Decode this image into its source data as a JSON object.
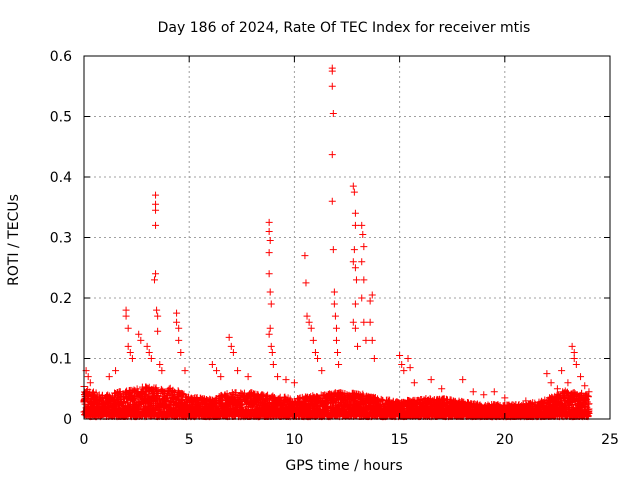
{
  "chart_data": {
    "type": "scatter",
    "title": "Day 186 of 2024, Rate Of TEC Index for receiver mtis",
    "xlabel": "GPS time / hours",
    "ylabel": "ROTI / TECUs",
    "xlim": [
      0,
      25
    ],
    "ylim": [
      0,
      0.6
    ],
    "x_ticks": [
      0,
      5,
      10,
      15,
      20,
      25
    ],
    "y_ticks": [
      0,
      0.1,
      0.2,
      0.3,
      0.4,
      0.5,
      0.6
    ],
    "x_tick_labels": [
      "0",
      "5",
      "10",
      "15",
      "20",
      "25"
    ],
    "y_tick_labels": [
      "0",
      "0.1",
      "0.2",
      "0.3",
      "0.4",
      "0.5",
      "0.6"
    ],
    "grid": true,
    "marker": "+",
    "series_color": "#ff0000",
    "baseline_profile": [
      [
        0.0,
        0.05
      ],
      [
        0.5,
        0.04
      ],
      [
        1.0,
        0.035
      ],
      [
        2.0,
        0.045
      ],
      [
        3.0,
        0.05
      ],
      [
        4.0,
        0.05
      ],
      [
        5.0,
        0.035
      ],
      [
        6.0,
        0.03
      ],
      [
        7.0,
        0.04
      ],
      [
        8.0,
        0.04
      ],
      [
        9.0,
        0.035
      ],
      [
        10.0,
        0.03
      ],
      [
        11.0,
        0.035
      ],
      [
        12.0,
        0.04
      ],
      [
        13.0,
        0.04
      ],
      [
        14.0,
        0.03
      ],
      [
        15.0,
        0.025
      ],
      [
        16.0,
        0.03
      ],
      [
        17.0,
        0.03
      ],
      [
        18.0,
        0.025
      ],
      [
        19.0,
        0.02
      ],
      [
        20.0,
        0.02
      ],
      [
        21.0,
        0.02
      ],
      [
        22.0,
        0.03
      ],
      [
        23.0,
        0.045
      ],
      [
        24.0,
        0.035
      ]
    ],
    "points": [
      [
        0.1,
        0.08
      ],
      [
        0.2,
        0.07
      ],
      [
        0.3,
        0.06
      ],
      [
        1.2,
        0.07
      ],
      [
        1.5,
        0.08
      ],
      [
        2.0,
        0.18
      ],
      [
        2.0,
        0.17
      ],
      [
        2.1,
        0.15
      ],
      [
        2.1,
        0.12
      ],
      [
        2.2,
        0.11
      ],
      [
        2.3,
        0.1
      ],
      [
        2.6,
        0.14
      ],
      [
        2.7,
        0.13
      ],
      [
        3.0,
        0.12
      ],
      [
        3.1,
        0.11
      ],
      [
        3.2,
        0.1
      ],
      [
        3.4,
        0.37
      ],
      [
        3.4,
        0.355
      ],
      [
        3.4,
        0.345
      ],
      [
        3.4,
        0.32
      ],
      [
        3.4,
        0.24
      ],
      [
        3.35,
        0.23
      ],
      [
        3.45,
        0.18
      ],
      [
        3.5,
        0.17
      ],
      [
        3.5,
        0.145
      ],
      [
        3.6,
        0.09
      ],
      [
        3.7,
        0.08
      ],
      [
        4.4,
        0.175
      ],
      [
        4.4,
        0.16
      ],
      [
        4.5,
        0.15
      ],
      [
        4.5,
        0.13
      ],
      [
        4.6,
        0.11
      ],
      [
        4.8,
        0.08
      ],
      [
        6.1,
        0.09
      ],
      [
        6.3,
        0.08
      ],
      [
        6.5,
        0.07
      ],
      [
        6.9,
        0.135
      ],
      [
        7.0,
        0.12
      ],
      [
        7.1,
        0.11
      ],
      [
        7.3,
        0.08
      ],
      [
        7.8,
        0.07
      ],
      [
        8.8,
        0.325
      ],
      [
        8.8,
        0.31
      ],
      [
        8.85,
        0.295
      ],
      [
        8.8,
        0.275
      ],
      [
        8.8,
        0.24
      ],
      [
        8.85,
        0.21
      ],
      [
        8.9,
        0.19
      ],
      [
        8.85,
        0.15
      ],
      [
        8.8,
        0.14
      ],
      [
        8.9,
        0.12
      ],
      [
        8.95,
        0.11
      ],
      [
        9.0,
        0.09
      ],
      [
        9.2,
        0.07
      ],
      [
        9.6,
        0.065
      ],
      [
        10.0,
        0.06
      ],
      [
        10.5,
        0.27
      ],
      [
        10.55,
        0.225
      ],
      [
        10.6,
        0.17
      ],
      [
        10.7,
        0.16
      ],
      [
        10.8,
        0.15
      ],
      [
        10.9,
        0.13
      ],
      [
        11.0,
        0.11
      ],
      [
        11.1,
        0.1
      ],
      [
        11.3,
        0.08
      ],
      [
        11.8,
        0.58
      ],
      [
        11.8,
        0.575
      ],
      [
        11.8,
        0.55
      ],
      [
        11.85,
        0.505
      ],
      [
        11.8,
        0.437
      ],
      [
        11.8,
        0.36
      ],
      [
        11.85,
        0.28
      ],
      [
        11.9,
        0.21
      ],
      [
        11.9,
        0.19
      ],
      [
        11.95,
        0.17
      ],
      [
        12.0,
        0.15
      ],
      [
        12.0,
        0.13
      ],
      [
        12.05,
        0.11
      ],
      [
        12.1,
        0.09
      ],
      [
        12.8,
        0.385
      ],
      [
        12.85,
        0.375
      ],
      [
        12.9,
        0.34
      ],
      [
        12.9,
        0.32
      ],
      [
        12.85,
        0.28
      ],
      [
        12.8,
        0.26
      ],
      [
        12.9,
        0.25
      ],
      [
        12.95,
        0.23
      ],
      [
        12.9,
        0.19
      ],
      [
        12.8,
        0.16
      ],
      [
        12.9,
        0.15
      ],
      [
        13.0,
        0.12
      ],
      [
        13.2,
        0.32
      ],
      [
        13.25,
        0.305
      ],
      [
        13.3,
        0.285
      ],
      [
        13.2,
        0.26
      ],
      [
        13.3,
        0.23
      ],
      [
        13.2,
        0.2
      ],
      [
        13.3,
        0.16
      ],
      [
        13.4,
        0.13
      ],
      [
        13.6,
        0.195
      ],
      [
        13.7,
        0.205
      ],
      [
        13.6,
        0.16
      ],
      [
        13.7,
        0.13
      ],
      [
        13.8,
        0.1
      ],
      [
        15.0,
        0.105
      ],
      [
        15.1,
        0.09
      ],
      [
        15.2,
        0.08
      ],
      [
        15.4,
        0.1
      ],
      [
        15.5,
        0.085
      ],
      [
        15.7,
        0.06
      ],
      [
        16.5,
        0.065
      ],
      [
        17.0,
        0.05
      ],
      [
        18.0,
        0.065
      ],
      [
        18.5,
        0.045
      ],
      [
        19.0,
        0.04
      ],
      [
        19.5,
        0.045
      ],
      [
        20.0,
        0.035
      ],
      [
        21.0,
        0.03
      ],
      [
        22.0,
        0.075
      ],
      [
        22.2,
        0.06
      ],
      [
        22.5,
        0.05
      ],
      [
        22.7,
        0.08
      ],
      [
        23.0,
        0.06
      ],
      [
        23.2,
        0.12
      ],
      [
        23.3,
        0.11
      ],
      [
        23.3,
        0.1
      ],
      [
        23.4,
        0.09
      ],
      [
        23.6,
        0.07
      ],
      [
        23.8,
        0.055
      ],
      [
        24.0,
        0.045
      ]
    ]
  }
}
